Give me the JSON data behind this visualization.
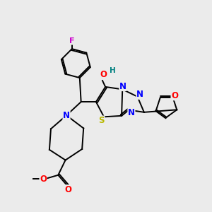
{
  "bg_color": "#ebebeb",
  "bond_color": "#000000",
  "atom_colors": {
    "F": "#cc00cc",
    "O": "#ff0000",
    "N": "#0000ff",
    "S": "#b8b800",
    "H": "#008080",
    "C": "#000000"
  },
  "lw": 1.4
}
